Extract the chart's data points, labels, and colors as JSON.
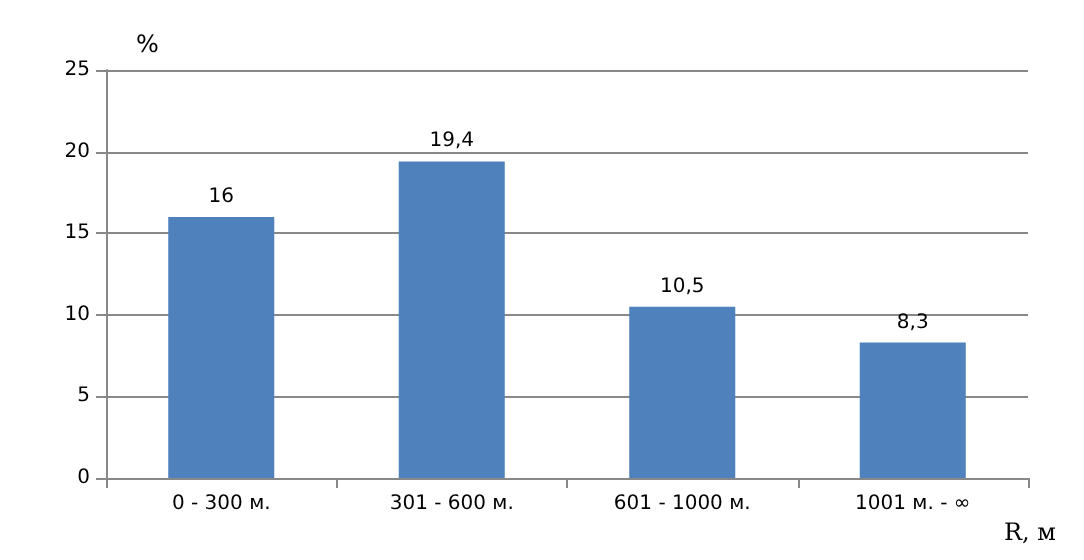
{
  "chart_data": {
    "type": "bar",
    "ylabel": "%",
    "xlabel": "R, м",
    "categories": [
      "0 - 300 м.",
      "301 - 600 м.",
      "601 - 1000 м.",
      "1001 м. - ∞"
    ],
    "values": [
      16,
      19.4,
      10.5,
      8.3
    ],
    "value_labels": [
      "16",
      "19,4",
      "10,5",
      "8,3"
    ],
    "color": "#4f81bd",
    "ylim": [
      0,
      25
    ],
    "yticks": [
      0,
      5,
      10,
      15,
      20,
      25
    ],
    "grid": "y"
  }
}
